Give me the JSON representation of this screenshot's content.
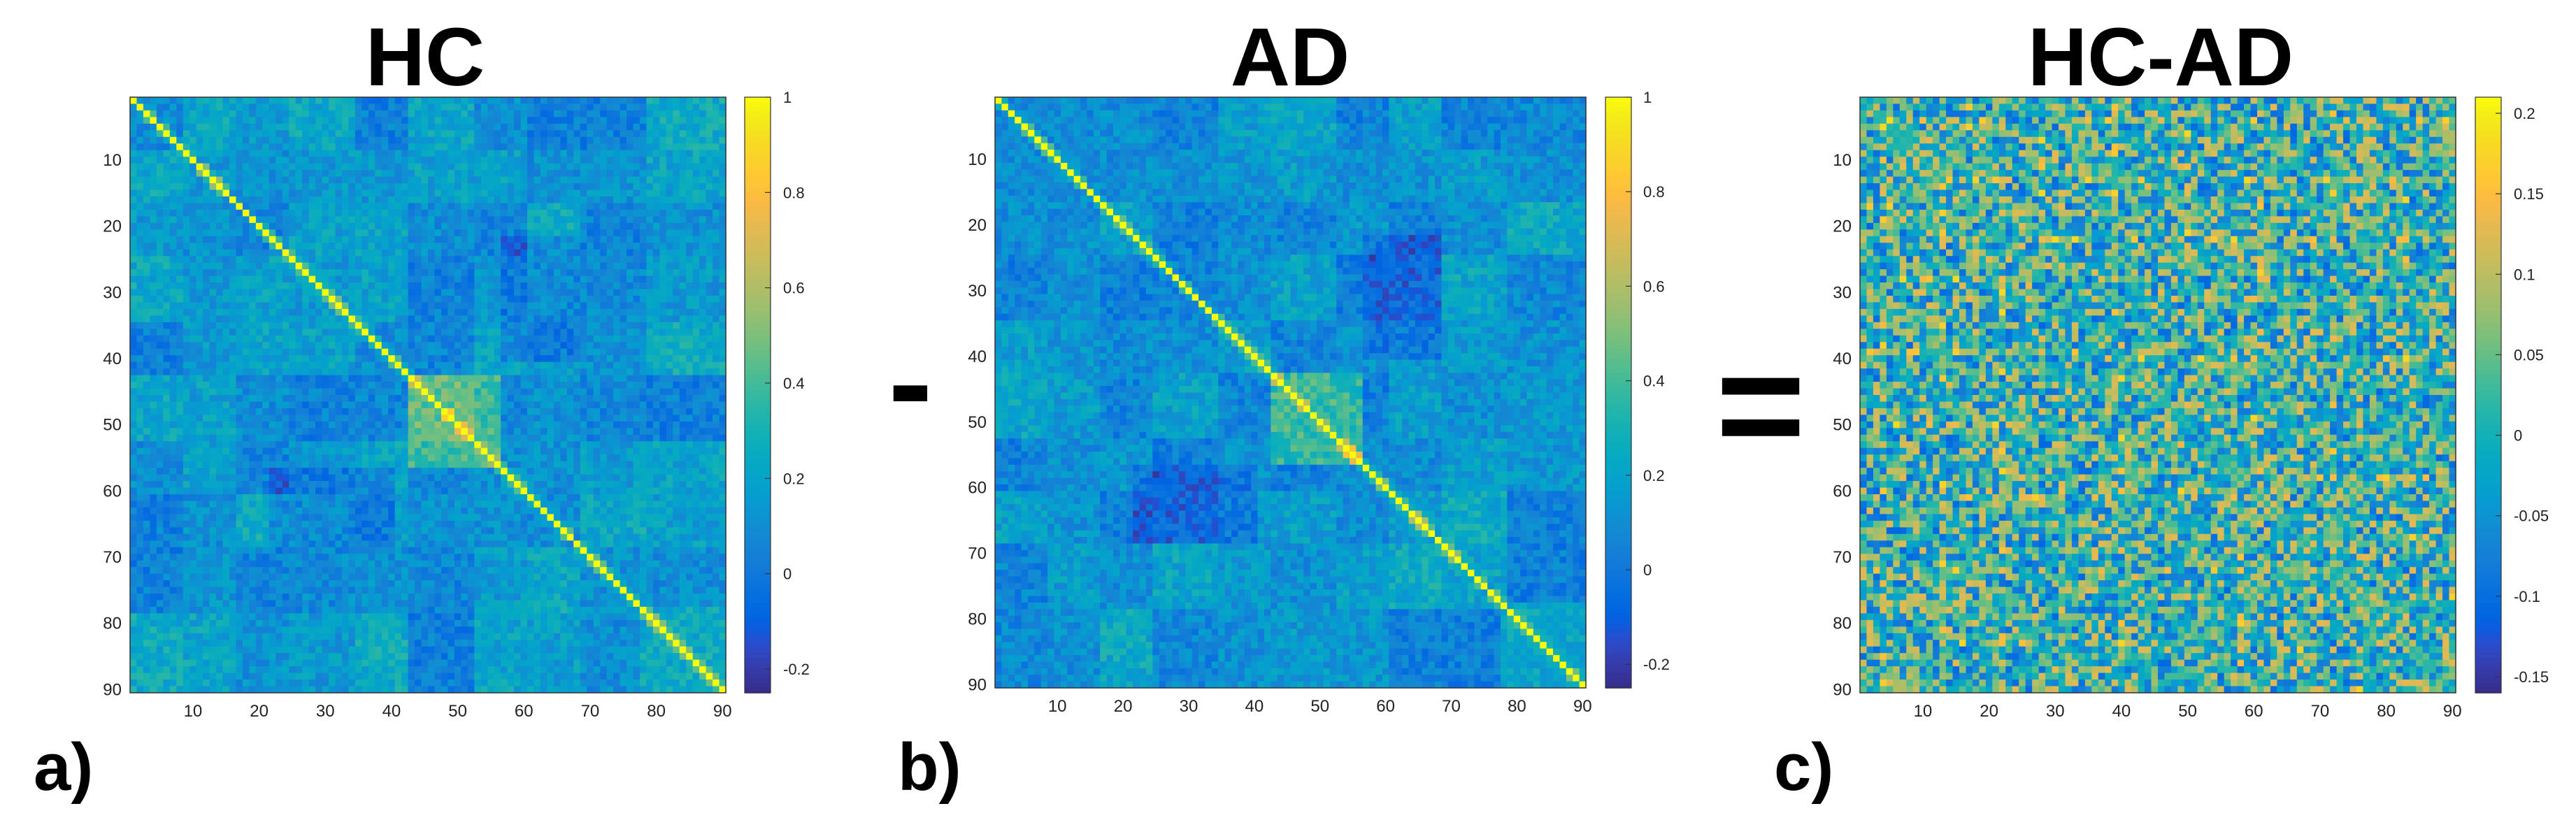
{
  "panels": [
    {
      "id": "hc",
      "title": "HC",
      "label": "a)",
      "kind": "correlation",
      "colorbar_ticks": [
        "1",
        "0.8",
        "0.6",
        "0.4",
        "0.2",
        "0",
        "-0.2"
      ],
      "colorbar_values": [
        1,
        0.8,
        0.6,
        0.4,
        0.2,
        0,
        -0.2
      ]
    },
    {
      "id": "ad",
      "title": "AD",
      "label": "b)",
      "kind": "correlation",
      "colorbar_ticks": [
        "1",
        "0.8",
        "0.6",
        "0.4",
        "0.2",
        "0",
        "-0.2"
      ],
      "colorbar_values": [
        1,
        0.8,
        0.6,
        0.4,
        0.2,
        0,
        -0.2
      ]
    },
    {
      "id": "diff",
      "title": "HC-AD",
      "label": "c)",
      "kind": "difference",
      "colorbar_ticks": [
        "0.2",
        "0.15",
        "0.1",
        "0.05",
        "0",
        "-0.05",
        "-0.1",
        "-0.15"
      ],
      "colorbar_values": [
        0.2,
        0.15,
        0.1,
        0.05,
        0,
        -0.05,
        -0.1,
        -0.15
      ]
    }
  ],
  "operators": {
    "minus": "-",
    "equals": "="
  },
  "chart_data": [
    {
      "type": "heatmap",
      "title": "HC",
      "size": 90,
      "x_ticks": [
        "10",
        "20",
        "30",
        "40",
        "50",
        "60",
        "70",
        "80",
        "90"
      ],
      "y_ticks": [
        "10",
        "20",
        "30",
        "40",
        "50",
        "60",
        "70",
        "80",
        "90"
      ],
      "value_range": [
        -0.25,
        1
      ],
      "diagonal_value": 1,
      "colormap": "parula"
    },
    {
      "type": "heatmap",
      "title": "AD",
      "size": 90,
      "x_ticks": [
        "10",
        "20",
        "30",
        "40",
        "50",
        "60",
        "70",
        "80",
        "90"
      ],
      "y_ticks": [
        "10",
        "20",
        "30",
        "40",
        "50",
        "60",
        "70",
        "80",
        "90"
      ],
      "value_range": [
        -0.25,
        1
      ],
      "diagonal_value": 1,
      "colormap": "parula"
    },
    {
      "type": "heatmap",
      "title": "HC-AD",
      "size": 90,
      "x_ticks": [
        "10",
        "20",
        "30",
        "40",
        "50",
        "60",
        "70",
        "80",
        "90"
      ],
      "y_ticks": [
        "10",
        "20",
        "30",
        "40",
        "50",
        "60",
        "70",
        "80",
        "90"
      ],
      "value_range": [
        -0.16,
        0.21
      ],
      "colormap": "parula"
    }
  ]
}
